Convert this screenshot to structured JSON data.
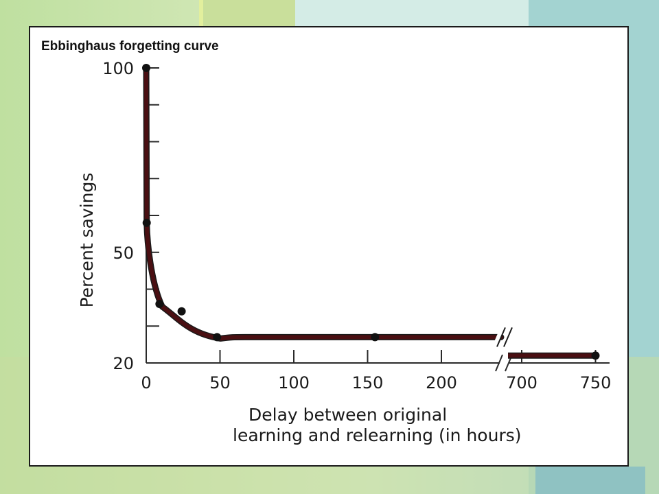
{
  "chart_data": {
    "type": "line",
    "title": "Ebbinghaus forgetting curve",
    "xlabel_lines": [
      "Delay between original",
      "learning and relearning (in hours)"
    ],
    "ylabel": "Percent savings",
    "ylim": [
      20,
      100
    ],
    "yticks_labeled": [
      100,
      50,
      20
    ],
    "ytick_step": 10,
    "x_axis_broken": true,
    "x_segments": [
      {
        "range": [
          0,
          240
        ],
        "tick_labels": [
          0,
          50,
          100,
          150,
          200
        ]
      },
      {
        "range": [
          690,
          750
        ],
        "tick_labels": [
          700,
          750
        ]
      }
    ],
    "series": [
      {
        "points": [
          {
            "x": 0,
            "y": 100
          },
          {
            "x": 0.33,
            "y": 58
          },
          {
            "x": 9,
            "y": 36
          },
          {
            "x": 24,
            "y": 34
          },
          {
            "x": 48,
            "y": 27
          },
          {
            "x": 155,
            "y": 27
          },
          {
            "x": 750,
            "y": 22
          }
        ],
        "color": "#4a0f12"
      }
    ],
    "grid": false,
    "legend": "none"
  }
}
